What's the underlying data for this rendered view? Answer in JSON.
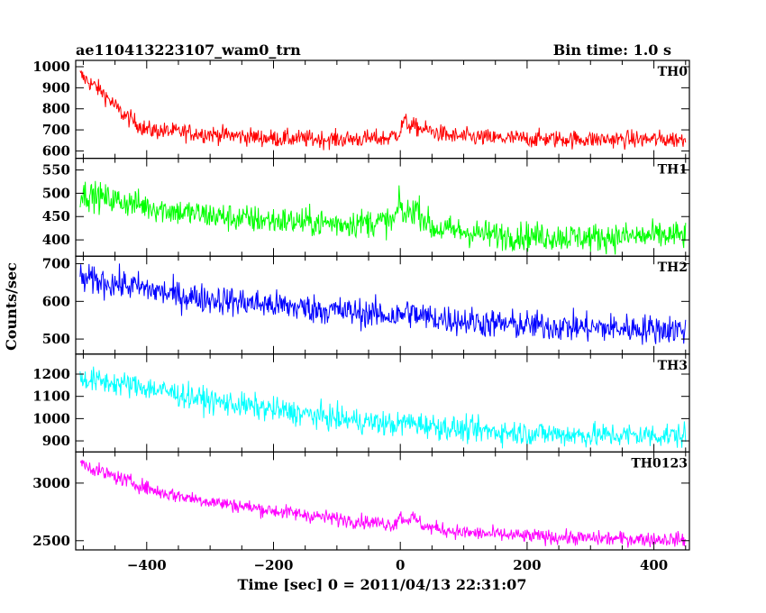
{
  "chart_data": {
    "type": "line",
    "title": "ae110413223107_wam0_trn",
    "bin_time_label": "Bin time: 1.0 s",
    "xlabel": "Time [sec] 0 = 2011/04/13 22:31:07",
    "ylabel": "Counts/sec",
    "xlim": [
      -512,
      456
    ],
    "x_ticks": [
      -400,
      -200,
      0,
      200,
      400
    ],
    "grid": false,
    "panels": [
      {
        "name": "TH0",
        "color": "#ff0000",
        "ylim": [
          565,
          1030
        ],
        "y_ticks": [
          600,
          700,
          800,
          900,
          1000
        ],
        "anchors": [
          [
            -505,
            960
          ],
          [
            -470,
            880
          ],
          [
            -440,
            780
          ],
          [
            -400,
            700
          ],
          [
            -300,
            680
          ],
          [
            -200,
            660
          ],
          [
            -100,
            655
          ],
          [
            -20,
            660
          ],
          [
            0,
            690
          ],
          [
            5,
            745
          ],
          [
            15,
            720
          ],
          [
            40,
            700
          ],
          [
            80,
            670
          ],
          [
            150,
            660
          ],
          [
            300,
            655
          ],
          [
            450,
            655
          ]
        ],
        "noise": 30
      },
      {
        "name": "TH1",
        "color": "#00ff00",
        "ylim": [
          365,
          575
        ],
        "y_ticks": [
          400,
          450,
          500,
          550
        ],
        "anchors": [
          [
            -505,
            500
          ],
          [
            -450,
            485
          ],
          [
            -350,
            460
          ],
          [
            -250,
            445
          ],
          [
            -100,
            435
          ],
          [
            -10,
            440
          ],
          [
            0,
            480
          ],
          [
            5,
            450
          ],
          [
            25,
            470
          ],
          [
            50,
            425
          ],
          [
            150,
            410
          ],
          [
            300,
            405
          ],
          [
            450,
            410
          ]
        ],
        "noise": 22
      },
      {
        "name": "TH2",
        "color": "#0000ff",
        "ylim": [
          460,
          720
        ],
        "y_ticks": [
          500,
          600,
          700
        ],
        "anchors": [
          [
            -505,
            660
          ],
          [
            -420,
            640
          ],
          [
            -350,
            615
          ],
          [
            -200,
            590
          ],
          [
            -100,
            575
          ],
          [
            0,
            560
          ],
          [
            10,
            575
          ],
          [
            30,
            560
          ],
          [
            150,
            540
          ],
          [
            300,
            530
          ],
          [
            450,
            525
          ]
        ],
        "noise": 28
      },
      {
        "name": "TH3",
        "color": "#00ffff",
        "ylim": [
          850,
          1290
        ],
        "y_ticks": [
          900,
          1000,
          1100,
          1200
        ],
        "anchors": [
          [
            -505,
            1180
          ],
          [
            -400,
            1140
          ],
          [
            -300,
            1080
          ],
          [
            -200,
            1040
          ],
          [
            -100,
            1000
          ],
          [
            0,
            970
          ],
          [
            5,
            985
          ],
          [
            100,
            950
          ],
          [
            200,
            935
          ],
          [
            300,
            925
          ],
          [
            450,
            925
          ]
        ],
        "noise": 40
      },
      {
        "name": "TH0123",
        "color": "#ff00ff",
        "ylim": [
          2420,
          3270
        ],
        "y_ticks": [
          2500,
          3000
        ],
        "anchors": [
          [
            -505,
            3180
          ],
          [
            -470,
            3090
          ],
          [
            -420,
            3000
          ],
          [
            -380,
            2920
          ],
          [
            -300,
            2840
          ],
          [
            -200,
            2760
          ],
          [
            -100,
            2690
          ],
          [
            -10,
            2640
          ],
          [
            0,
            2720
          ],
          [
            5,
            2680
          ],
          [
            20,
            2700
          ],
          [
            40,
            2620
          ],
          [
            100,
            2570
          ],
          [
            200,
            2540
          ],
          [
            300,
            2520
          ],
          [
            450,
            2510
          ]
        ],
        "noise": 45
      }
    ]
  }
}
